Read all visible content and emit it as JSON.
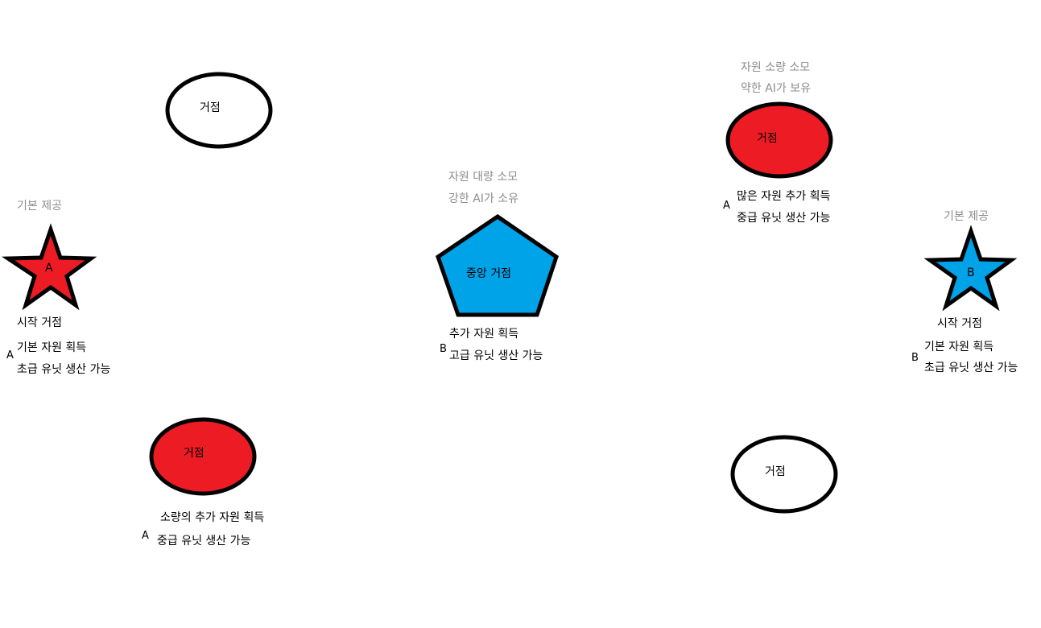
{
  "colors": {
    "red": "#ed1c24",
    "blue": "#00a2e8",
    "white": "#ffffff",
    "outline": "#000000",
    "note_gray": "#8c8c8c"
  },
  "nodes": {
    "top_left_ellipse": {
      "shape": "ellipse",
      "fill": "white",
      "label": "거점"
    },
    "top_right_ellipse": {
      "shape": "ellipse",
      "fill": "red",
      "label": "거점",
      "notes": [
        "자원 소량 소모",
        "약한 AI가 보유"
      ],
      "owner": "A",
      "desc": [
        "많은 자원 추가 획득",
        "중급 유닛 생산 가능"
      ]
    },
    "left_star": {
      "shape": "star",
      "fill": "red",
      "label": "A",
      "note": "기본 제공",
      "title": "시작 거점",
      "owner": "A",
      "desc": [
        "기본 자원 획득",
        "초급 유닛 생산 가능"
      ]
    },
    "center_pentagon": {
      "shape": "pentagon",
      "fill": "blue",
      "label": "중앙 거점",
      "notes": [
        "자원 대량 소모",
        "강한 AI가 소유"
      ],
      "owner": "B",
      "desc": [
        "추가 자원 획득",
        "고급 유닛 생산 가능"
      ]
    },
    "right_star": {
      "shape": "star",
      "fill": "blue",
      "label": "B",
      "note": "기본 제공",
      "title": "시작 거점",
      "owner": "B",
      "desc": [
        "기본 자원 획득",
        "초급 유닛 생산 가능"
      ]
    },
    "bottom_left_ellipse": {
      "shape": "ellipse",
      "fill": "red",
      "label": "거점",
      "owner": "A",
      "desc": [
        "소량의 추가 자원 획득",
        "중급 유닛 생산 가능"
      ]
    },
    "bottom_right_ellipse": {
      "shape": "ellipse",
      "fill": "white",
      "label": "거점"
    }
  }
}
